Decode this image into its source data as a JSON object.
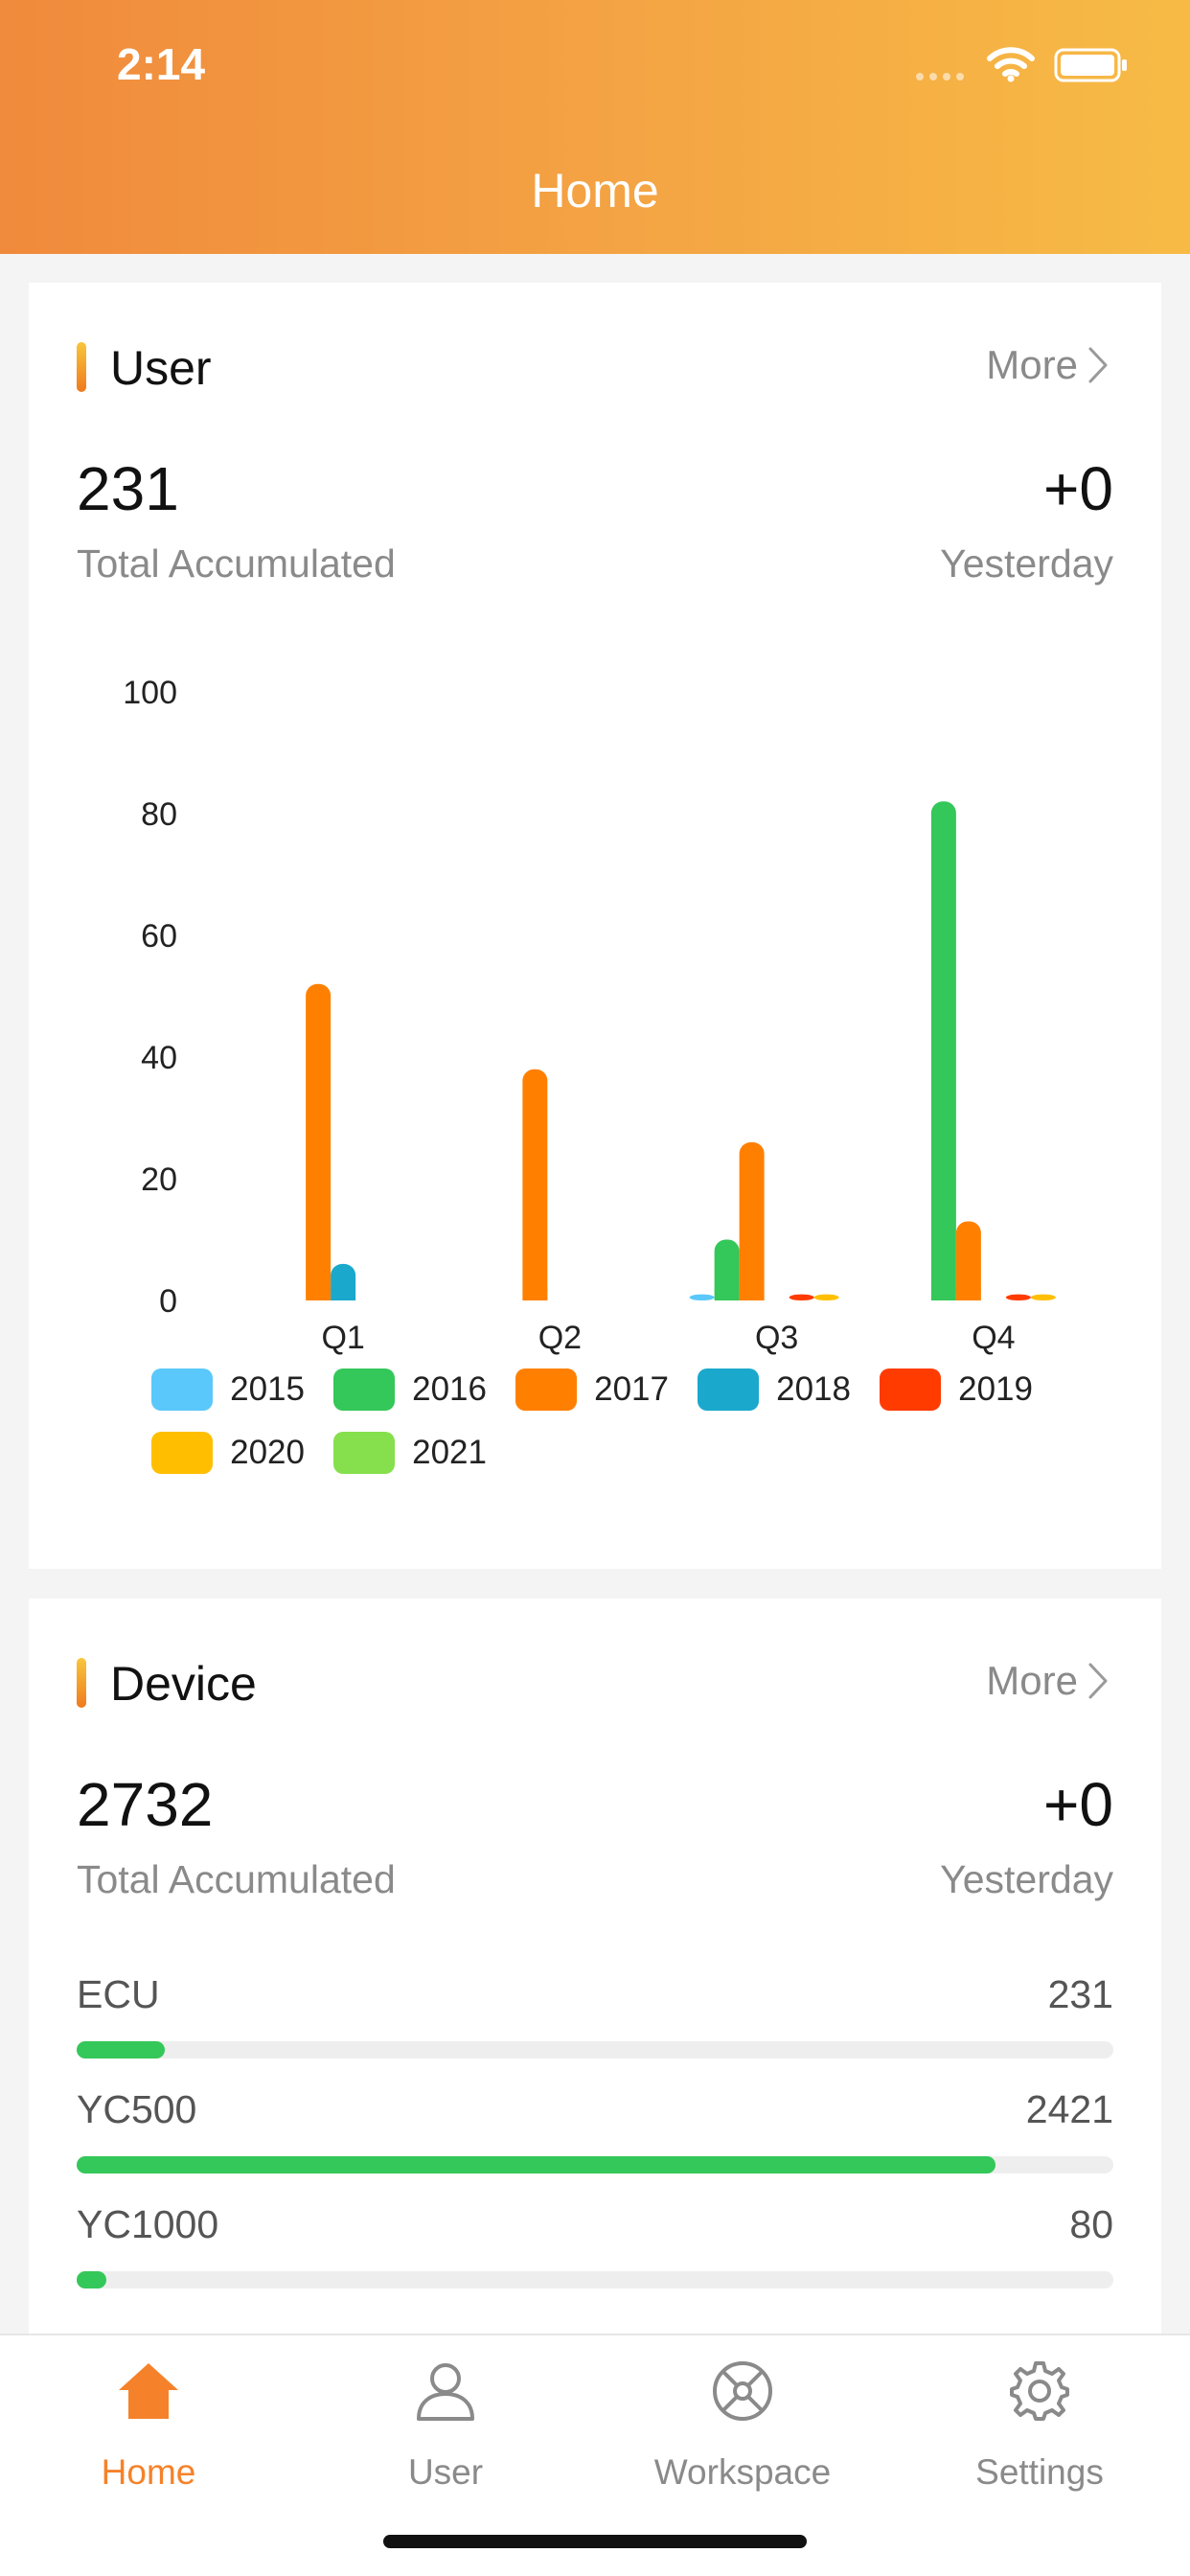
{
  "status_bar": {
    "time": "2:14"
  },
  "header": {
    "title": "Home"
  },
  "user_card": {
    "title": "User",
    "more_label": "More",
    "total_value": "231",
    "total_label": "Total Accumulated",
    "yesterday_value": "+0",
    "yesterday_label": "Yesterday"
  },
  "chart_data": {
    "type": "bar",
    "categories": [
      "Q1",
      "Q2",
      "Q3",
      "Q4"
    ],
    "ylim": [
      0,
      100
    ],
    "yticks": [
      0,
      20,
      40,
      60,
      80,
      100
    ],
    "series": [
      {
        "name": "2015",
        "color": "#5ac8fa",
        "values": [
          0,
          0,
          1,
          0
        ]
      },
      {
        "name": "2016",
        "color": "#34c759",
        "values": [
          0,
          0,
          10,
          82
        ]
      },
      {
        "name": "2017",
        "color": "#ff8000",
        "values": [
          52,
          38,
          26,
          13
        ]
      },
      {
        "name": "2018",
        "color": "#1aa8cc",
        "values": [
          6,
          0,
          0,
          0
        ]
      },
      {
        "name": "2019",
        "color": "#ff3b00",
        "values": [
          0,
          0,
          1,
          1
        ]
      },
      {
        "name": "2020",
        "color": "#ffbf00",
        "values": [
          0,
          0,
          1,
          1
        ]
      },
      {
        "name": "2021",
        "color": "#86e04d",
        "values": [
          0,
          0,
          0,
          0
        ]
      }
    ]
  },
  "device_card": {
    "title": "Device",
    "more_label": "More",
    "total_value": "2732",
    "total_label": "Total Accumulated",
    "yesterday_value": "+0",
    "yesterday_label": "Yesterday",
    "rows": [
      {
        "label": "ECU",
        "value": "231",
        "fraction": 0.085
      },
      {
        "label": "YC500",
        "value": "2421",
        "fraction": 0.886
      },
      {
        "label": "YC1000",
        "value": "80",
        "fraction": 0.029
      }
    ]
  },
  "tabbar": {
    "items": [
      {
        "label": "Home",
        "icon": "home-icon",
        "active": true
      },
      {
        "label": "User",
        "icon": "user-icon",
        "active": false
      },
      {
        "label": "Workspace",
        "icon": "workspace-icon",
        "active": false
      },
      {
        "label": "Settings",
        "icon": "gear-icon",
        "active": false
      }
    ]
  },
  "colors": {
    "accent": "#f5822a",
    "progress": "#34c759"
  }
}
